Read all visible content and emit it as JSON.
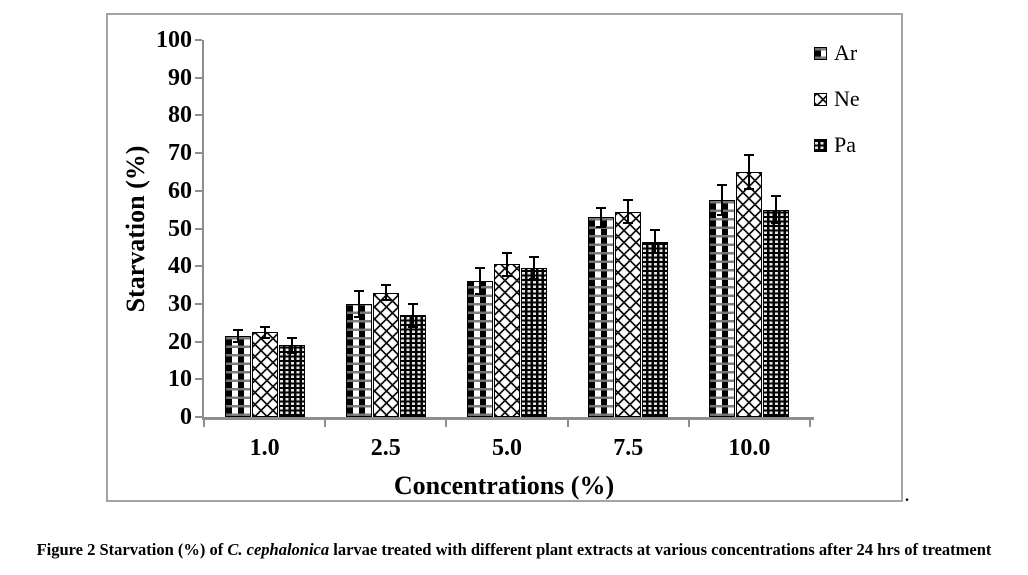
{
  "chart_data": {
    "type": "bar",
    "title": "",
    "xlabel": "Concentrations (%)",
    "ylabel": "Starvation (%)",
    "categories": [
      "1.0",
      "2.5",
      "5.0",
      "7.5",
      "10.0"
    ],
    "series": [
      {
        "name": "Ar",
        "pattern": "checker-plaid",
        "values": [
          21.5,
          30,
          36,
          53,
          57.5
        ],
        "errors": [
          1.5,
          3.5,
          3.5,
          2.5,
          4
        ]
      },
      {
        "name": "Ne",
        "pattern": "diamond-crosshatch",
        "values": [
          22.5,
          33,
          40.5,
          54.5,
          65
        ],
        "errors": [
          1.5,
          2,
          3,
          3,
          4.5
        ]
      },
      {
        "name": "Pa",
        "pattern": "dark-dotted",
        "values": [
          19,
          27,
          39.5,
          46.5,
          55
        ],
        "errors": [
          2,
          3,
          3,
          3,
          3.5
        ]
      }
    ],
    "ylim": [
      0,
      100
    ],
    "ytick_step": 10,
    "yticks": [
      "0",
      "10",
      "20",
      "30",
      "40",
      "50",
      "60",
      "70",
      "80",
      "90",
      "100"
    ],
    "legend_position": "top-right",
    "grid": false,
    "error_bars": true,
    "colors": {
      "axis": "#8e8e8e",
      "frame_border": "#a3a3a3",
      "bar_outline": "#000000",
      "text": "#000000"
    }
  },
  "figure": {
    "frame_period": ".",
    "caption_prefix": "Figure 2 Starvation (%) of ",
    "caption_species": "C. cephalonica",
    "caption_suffix": " larvae treated with different plant extracts at various concentrations after 24 hrs of treatment"
  }
}
